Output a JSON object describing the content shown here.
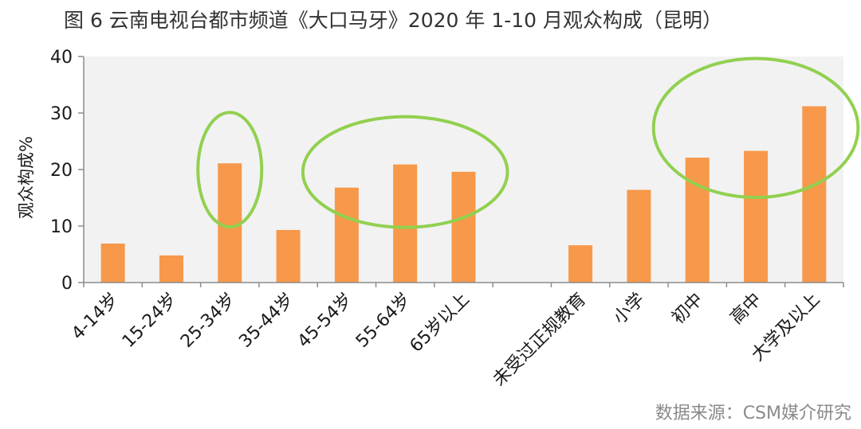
{
  "title": "图 6  云南电视台都市频道《大口马牙》2020 年 1-10 月观众构成（昆明）",
  "source": "数据来源：CSM媒介研究",
  "colors": {
    "bar": "#f7984a",
    "plot_bg": "#f2f2f2",
    "highlight": "#92d050",
    "axis": "#8c8c8c"
  },
  "chart_data": {
    "type": "bar",
    "categories": [
      "4-14岁",
      "15-24岁",
      "25-34岁",
      "35-44岁",
      "45-54岁",
      "55-64岁",
      "65岁以上",
      "",
      "未受过正规教育",
      "小学",
      "初中",
      "高中",
      "大学及以上"
    ],
    "values": [
      6.9,
      4.8,
      21.1,
      9.3,
      16.8,
      20.9,
      19.6,
      null,
      6.6,
      16.4,
      22.1,
      23.3,
      31.2
    ],
    "xlabel": "",
    "ylabel": "观众构成%",
    "ylim": [
      0,
      40
    ],
    "yticks": [
      0,
      10,
      20,
      30,
      40
    ],
    "grid": false,
    "highlight_ellipses": [
      {
        "categories": [
          "25-34岁"
        ]
      },
      {
        "categories": [
          "45-54岁",
          "55-64岁",
          "65岁以上"
        ]
      },
      {
        "categories": [
          "初中",
          "高中",
          "大学及以上"
        ]
      }
    ]
  }
}
